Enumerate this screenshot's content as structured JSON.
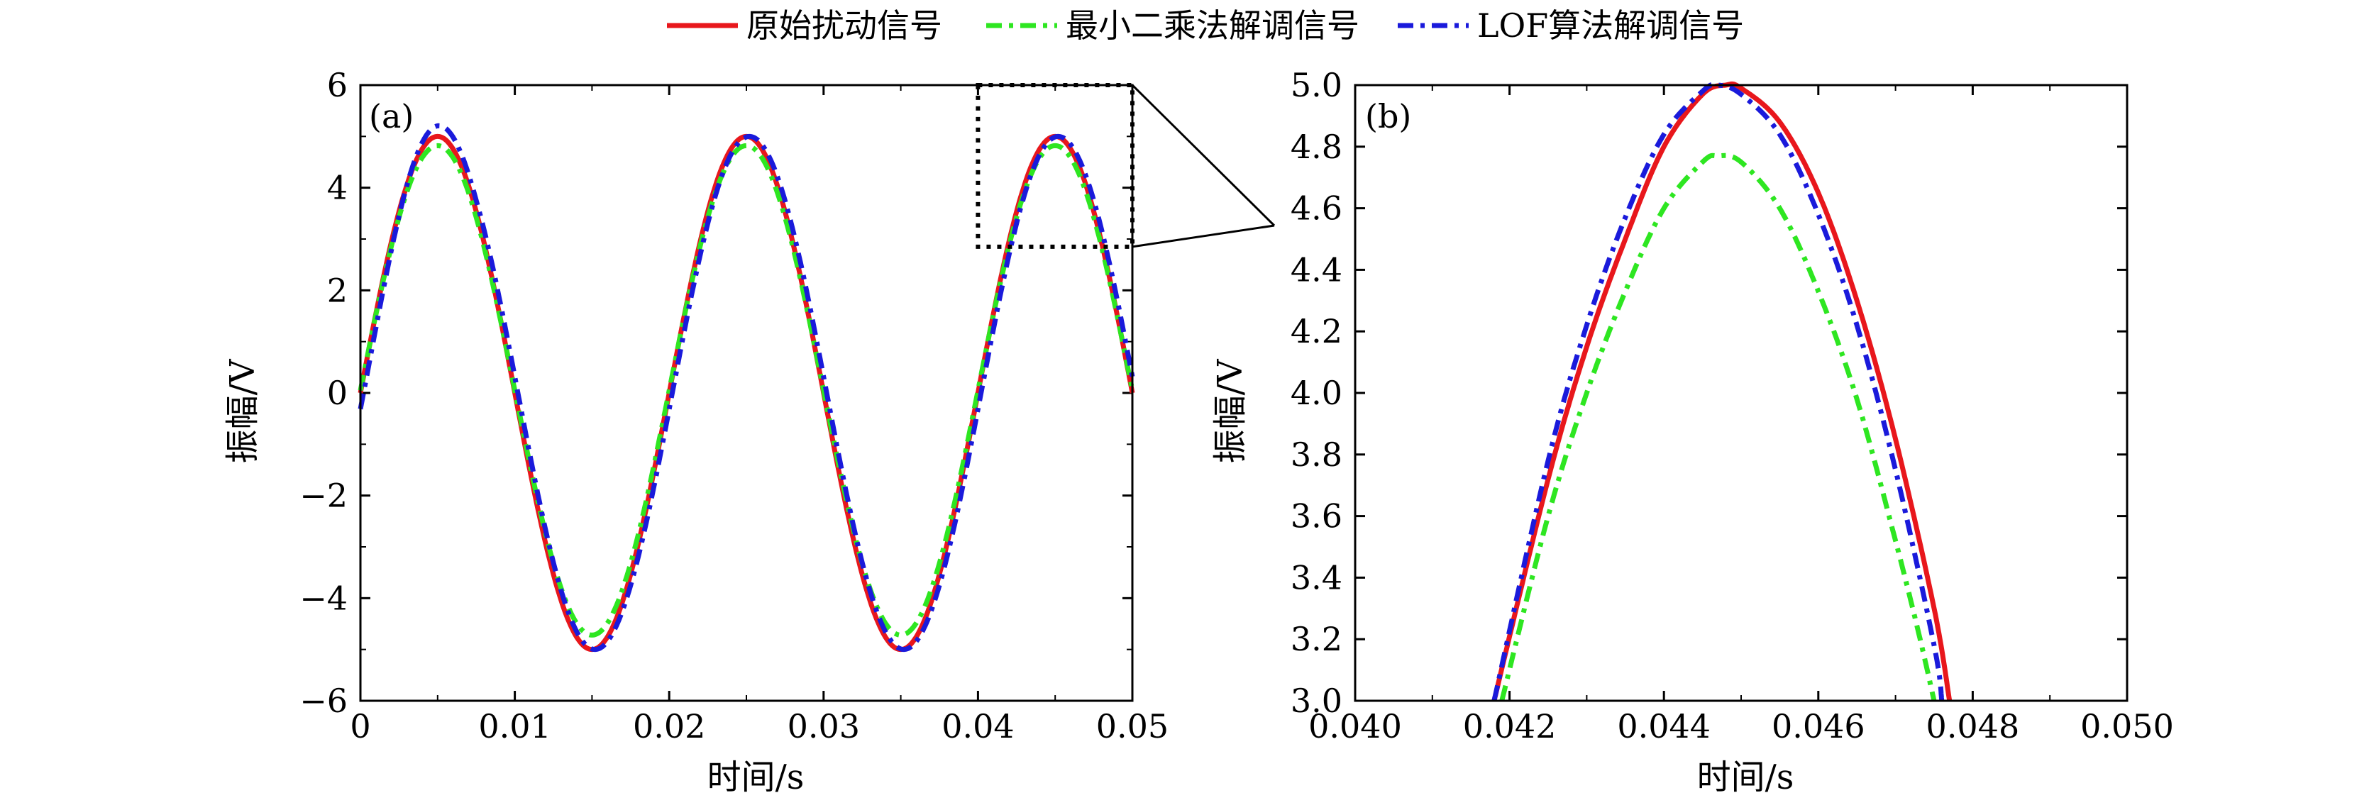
{
  "legend": {
    "items": [
      {
        "label": "原始扰动信号",
        "color": "#e8171c",
        "dash": "solid"
      },
      {
        "label": "最小二乘法解调信号",
        "color": "#2ee621",
        "dash": "dashdot"
      },
      {
        "label": "LOF算法解调信号",
        "color": "#1a1adb",
        "dash": "dashdot"
      }
    ]
  },
  "chart_data": [
    {
      "type": "line",
      "panel_label": "(a)",
      "xlabel": "时间/s",
      "ylabel": "振幅/V",
      "xlim": [
        0,
        0.05
      ],
      "ylim": [
        -6,
        6
      ],
      "xticks": [
        0,
        0.01,
        0.02,
        0.03,
        0.04,
        0.05
      ],
      "xtick_labels": [
        "0",
        "0.01",
        "0.02",
        "0.03",
        "0.04",
        "0.05"
      ],
      "yticks": [
        -6,
        -4,
        -2,
        0,
        2,
        4,
        6
      ],
      "ytick_labels": [
        "−6",
        "−4",
        "−2",
        "0",
        "2",
        "4",
        "6"
      ],
      "zoom_box": {
        "x": [
          0.04,
          0.05
        ],
        "y": [
          2.85,
          6.0
        ]
      },
      "series": [
        {
          "name": "原始扰动信号",
          "model": "sine",
          "amplitude": 5.0,
          "frequency_hz": 50,
          "phase_shift_s": 0.0,
          "offset": 0
        },
        {
          "name": "最小二乘法解调信号",
          "model": "sine",
          "amplitude": 4.77,
          "frequency_hz": 50,
          "phase_shift_s": 0.0,
          "offset": 0.05
        },
        {
          "name": "LOF算法解调信号",
          "model": "sine",
          "amplitude": 5.0,
          "frequency_hz": 50,
          "phase_shift_s": 0.0002,
          "offset": 0,
          "start_extra": {
            "t": [
              0,
              0.0025,
              0.005,
              0.0075
            ],
            "v": [
              0.0,
              3.9,
              5.25,
              3.7
            ]
          }
        }
      ]
    },
    {
      "type": "line",
      "panel_label": "(b)",
      "xlabel": "时间/s",
      "ylabel": "振幅/V",
      "xlim": [
        0.04,
        0.05
      ],
      "ylim": [
        3.0,
        5.0
      ],
      "xticks": [
        0.04,
        0.042,
        0.044,
        0.046,
        0.048,
        0.05
      ],
      "xtick_labels": [
        "0.040",
        "0.042",
        "0.044",
        "0.046",
        "0.048",
        "0.050"
      ],
      "yticks": [
        3.0,
        3.2,
        3.4,
        3.6,
        3.8,
        4.0,
        4.2,
        4.4,
        4.6,
        4.8,
        5.0
      ],
      "ytick_labels": [
        "3.0",
        "3.2",
        "3.4",
        "3.6",
        "3.8",
        "4.0",
        "4.2",
        "4.4",
        "4.6",
        "4.8",
        "5.0"
      ],
      "series": [
        {
          "name": "原始扰动信号",
          "x": [
            0.0418,
            0.0425,
            0.043,
            0.0435,
            0.044,
            0.0445,
            0.0448,
            0.045,
            0.0455,
            0.046,
            0.0465,
            0.047,
            0.0475,
            0.0477
          ],
          "y": [
            3.0,
            3.72,
            4.15,
            4.5,
            4.8,
            4.97,
            5.0,
            4.99,
            4.88,
            4.65,
            4.3,
            3.85,
            3.3,
            3.0
          ]
        },
        {
          "name": "最小二乘法解调信号",
          "x": [
            0.0419,
            0.0425,
            0.043,
            0.0435,
            0.044,
            0.0445,
            0.0447,
            0.045,
            0.0455,
            0.046,
            0.0465,
            0.047,
            0.0473,
            0.0475
          ],
          "y": [
            3.0,
            3.6,
            4.0,
            4.33,
            4.6,
            4.75,
            4.77,
            4.75,
            4.6,
            4.33,
            3.98,
            3.52,
            3.22,
            3.0
          ]
        },
        {
          "name": "LOF算法解调信号",
          "x": [
            0.0418,
            0.0425,
            0.043,
            0.0435,
            0.044,
            0.0445,
            0.0447,
            0.045,
            0.0455,
            0.046,
            0.0465,
            0.047,
            0.0475,
            0.0476
          ],
          "y": [
            3.0,
            3.78,
            4.22,
            4.57,
            4.84,
            4.98,
            5.0,
            4.97,
            4.84,
            4.58,
            4.22,
            3.75,
            3.18,
            3.0
          ]
        }
      ]
    }
  ]
}
